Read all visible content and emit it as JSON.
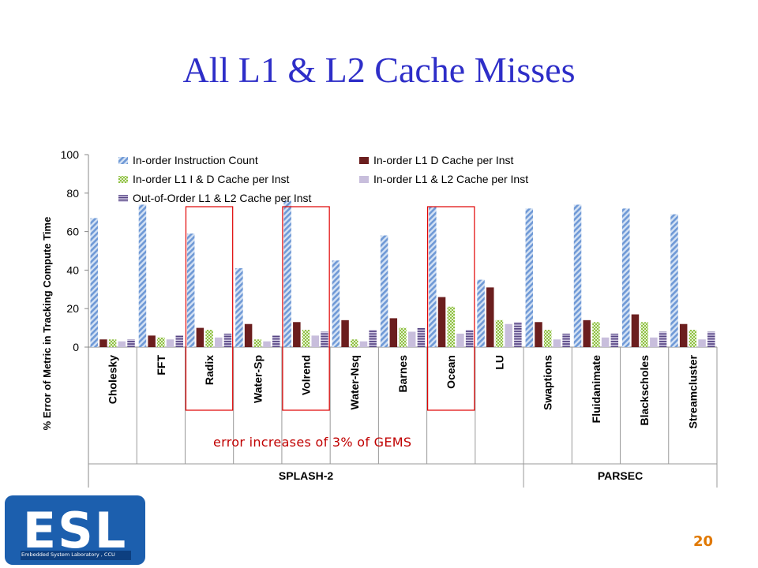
{
  "slide": {
    "title": "All L1 & L2 Cache Misses",
    "annotation": "error increases of 3% of GEMS",
    "page_number": "20",
    "logo": {
      "letters": "ESL",
      "subtext": "Embedded System Laboratory , CCU"
    }
  },
  "colors": {
    "title": "#2e2ec8",
    "annotation": "#c00000",
    "page_number": "#e07800",
    "highlight_box": "#e00000",
    "logo": "#1c5fae"
  },
  "highlighted_categories": [
    "Radix",
    "Volrend",
    "Ocean"
  ],
  "chart_data": {
    "type": "bar",
    "ylabel": "% Error of Metric in Tracking Compute Time",
    "ylim": [
      0,
      100
    ],
    "yticks": [
      0,
      20,
      40,
      60,
      80,
      100
    ],
    "grid": false,
    "legend_position": "top",
    "categories": [
      "Cholesky",
      "FFT",
      "Radix",
      "Water-Sp",
      "Volrend",
      "Water-Nsq",
      "Barnes",
      "Ocean",
      "LU",
      "Swaptions",
      "Fluidanimate",
      "Blackscholes",
      "Streamcluster"
    ],
    "groups": [
      {
        "label": "SPLASH-2",
        "count": 9
      },
      {
        "label": "PARSEC",
        "count": 4
      }
    ],
    "series": [
      {
        "name": "In-order Instruction Count",
        "color": "#7fa6dc",
        "pattern": "diagonal",
        "values": [
          67,
          74,
          59,
          41,
          76,
          45,
          58,
          73,
          35,
          72,
          74,
          72,
          69
        ]
      },
      {
        "name": "In-order L1 D Cache per Inst",
        "color": "#6b1e1e",
        "pattern": "solid",
        "values": [
          4,
          6,
          10,
          12,
          13,
          14,
          15,
          26,
          31,
          13,
          14,
          17,
          12
        ]
      },
      {
        "name": "In-order L1 I & D Cache per Inst",
        "color": "#92c04a",
        "pattern": "check",
        "values": [
          4,
          5,
          9,
          4,
          9,
          4,
          10,
          21,
          14,
          9,
          13,
          13,
          9
        ]
      },
      {
        "name": "In-order L1 & L2 Cache per Inst",
        "color": "#c8bedc",
        "pattern": "solid",
        "values": [
          3,
          4,
          5,
          3,
          6,
          3,
          8,
          7,
          12,
          4,
          5,
          5,
          4
        ]
      },
      {
        "name": "Out-of-Order L1 & L2 Cache per Inst",
        "color": "#5a4a86",
        "pattern": "hstripe",
        "values": [
          4,
          6,
          7,
          6,
          8,
          9,
          10,
          9,
          13,
          7,
          7,
          8,
          8
        ]
      }
    ]
  }
}
